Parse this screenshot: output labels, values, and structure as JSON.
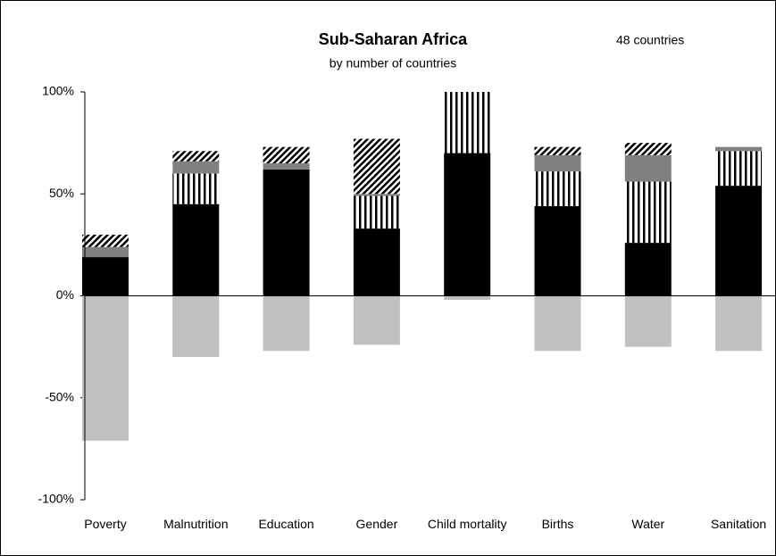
{
  "chart_data": {
    "type": "stacked_bar",
    "title": "Sub-Saharan Africa",
    "subtitle": "by number of countries",
    "annotation": "48 countries",
    "categories": [
      "Poverty",
      "Malnutrition",
      "Education",
      "Gender",
      "Child mortality",
      "Births",
      "Water",
      "Sanitation"
    ],
    "series": [
      {
        "color": "#000000",
        "pattern": "solid",
        "values": [
          19,
          45,
          62,
          33,
          70,
          44,
          26,
          54
        ]
      },
      {
        "color": "#000000",
        "pattern": "vertical",
        "values": [
          0,
          15,
          0,
          16,
          30,
          17,
          30,
          17
        ]
      },
      {
        "color": "#808080",
        "pattern": "solid",
        "values": [
          5,
          6,
          3,
          1,
          0,
          8,
          13,
          2
        ]
      },
      {
        "color": "#000000",
        "pattern": "diagonal",
        "values": [
          6,
          5,
          8,
          27,
          0,
          4,
          6,
          0
        ]
      },
      {
        "color": "#c0c0c0",
        "pattern": "solid",
        "values": [
          -71,
          -30,
          -27,
          -24,
          -2,
          -27,
          -25,
          -27
        ]
      }
    ],
    "ylim": [
      -100,
      100
    ],
    "yticks": [
      {
        "value": -100,
        "label": "-100%"
      },
      {
        "value": -50,
        "label": "-50%"
      },
      {
        "value": 0,
        "label": "0%"
      },
      {
        "value": 50,
        "label": "50%"
      },
      {
        "value": 100,
        "label": "100%"
      }
    ]
  }
}
